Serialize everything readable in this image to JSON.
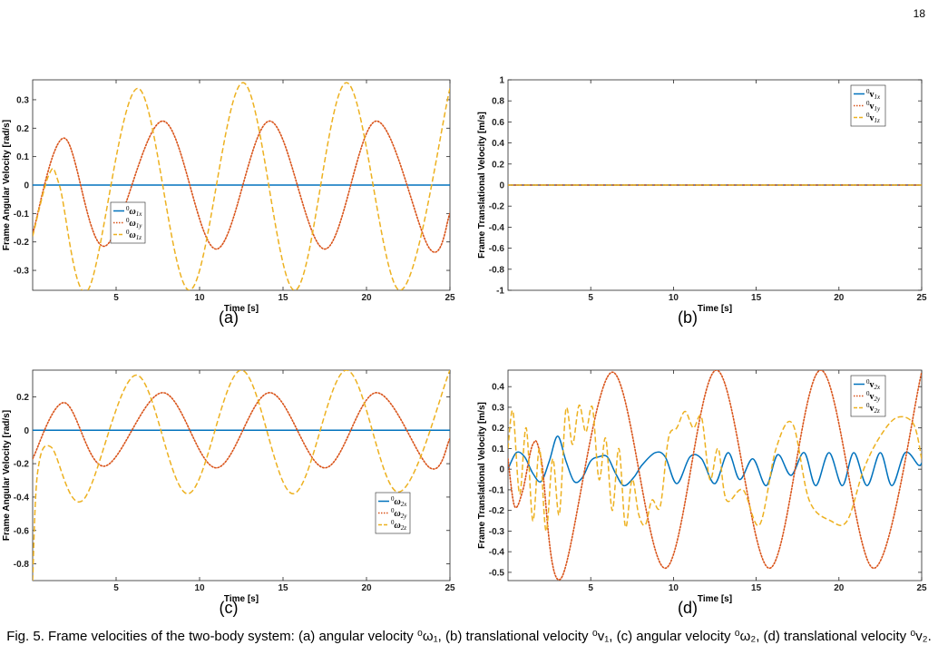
{
  "page_number": "18",
  "caption": "Fig. 5. Frame velocities of the two-body system: (a) angular velocity ⁰ω₁, (b) translational velocity ⁰v₁, (c) angular velocity ⁰ω₂, (d) translational velocity ⁰v₂.",
  "colors": {
    "x": "#0072BD",
    "y": "#D95319",
    "z": "#EDB120"
  },
  "chart_data": [
    {
      "id": "a",
      "sublabel": "(a)",
      "type": "line",
      "xlabel": "Time [s]",
      "ylabel": "Frame Angular Velocity [rad/s]",
      "xlim": [
        0,
        25
      ],
      "ylim": [
        -0.37,
        0.37
      ],
      "xticks": [
        5,
        10,
        15,
        20,
        25
      ],
      "yticks": [
        -0.3,
        -0.2,
        -0.1,
        0,
        0.1,
        0.2,
        0.3
      ],
      "legend_position": "bottom-left",
      "series": [
        {
          "name": "0ω1x",
          "sup": "0",
          "sym": "ω",
          "sub": "1x",
          "style": "solid",
          "color": "#0072BD",
          "x": [
            0,
            25
          ],
          "y": [
            0,
            0
          ]
        },
        {
          "name": "0ω1y",
          "sup": "0",
          "sym": "ω",
          "sub": "1y",
          "style": "dotted",
          "color": "#D95319",
          "x": [
            0,
            1.9,
            4.3,
            7.8,
            11.0,
            14.2,
            17.5,
            20.6,
            23.8,
            25
          ],
          "y": [
            -0.17,
            0.165,
            -0.215,
            0.225,
            -0.225,
            0.225,
            -0.225,
            0.225,
            -0.225,
            -0.1
          ]
        },
        {
          "name": "0ω1z",
          "sup": "0",
          "sym": "ω",
          "sub": "1z",
          "style": "dashed",
          "color": "#EDB120",
          "x": [
            0,
            1.0,
            1.6,
            3.3,
            6.3,
            9.4,
            12.6,
            15.7,
            18.8,
            22.0,
            25
          ],
          "y": [
            -0.18,
            0.04,
            0.0,
            -0.37,
            0.34,
            -0.37,
            0.36,
            -0.37,
            0.36,
            -0.37,
            0.34
          ]
        }
      ]
    },
    {
      "id": "b",
      "sublabel": "(b)",
      "type": "line",
      "xlabel": "Time [s]",
      "ylabel": "Frame Translational Velocity [m/s]",
      "xlim": [
        0,
        25
      ],
      "ylim": [
        -1,
        1
      ],
      "xticks": [
        5,
        10,
        15,
        20,
        25
      ],
      "yticks": [
        -1,
        -0.8,
        -0.6,
        -0.4,
        -0.2,
        0,
        0.2,
        0.4,
        0.6,
        0.8,
        1
      ],
      "legend_position": "top-right",
      "series": [
        {
          "name": "0v1x",
          "sup": "0",
          "sym": "v",
          "sub": "1x",
          "style": "solid",
          "color": "#0072BD",
          "x": [
            0,
            25
          ],
          "y": [
            0,
            0
          ]
        },
        {
          "name": "0v1y",
          "sup": "0",
          "sym": "v",
          "sub": "1y",
          "style": "dotted",
          "color": "#D95319",
          "x": [
            0,
            25
          ],
          "y": [
            0,
            0
          ]
        },
        {
          "name": "0v1z",
          "sup": "0",
          "sym": "v",
          "sub": "1z",
          "style": "dashed",
          "color": "#EDB120",
          "x": [
            0,
            25
          ],
          "y": [
            0,
            0
          ]
        }
      ]
    },
    {
      "id": "c",
      "sublabel": "(c)",
      "type": "line",
      "xlabel": "Time [s]",
      "ylabel": "Frame Angular Velocity [rad/s]",
      "xlim": [
        0,
        25
      ],
      "ylim": [
        -0.9,
        0.36
      ],
      "xticks": [
        5,
        10,
        15,
        20,
        25
      ],
      "yticks": [
        -0.8,
        -0.6,
        -0.4,
        -0.2,
        0,
        0.2
      ],
      "legend_position": "bottom-right",
      "series": [
        {
          "name": "0ω2x",
          "sup": "0",
          "sym": "ω",
          "sub": "2x",
          "style": "solid",
          "color": "#0072BD",
          "x": [
            0,
            25
          ],
          "y": [
            0,
            0
          ]
        },
        {
          "name": "0ω2y",
          "sup": "0",
          "sym": "ω",
          "sub": "2y",
          "style": "dotted",
          "color": "#D95319",
          "x": [
            0,
            1.9,
            4.3,
            7.8,
            11.0,
            14.2,
            17.5,
            20.6,
            23.8,
            25
          ],
          "y": [
            -0.17,
            0.165,
            -0.215,
            0.225,
            -0.225,
            0.225,
            -0.225,
            0.225,
            -0.225,
            -0.05
          ]
        },
        {
          "name": "0ω2z",
          "sup": "0",
          "sym": "ω",
          "sub": "2z",
          "style": "dashed",
          "color": "#EDB120",
          "x": [
            0,
            0.3,
            1.1,
            3.0,
            6.2,
            9.3,
            12.5,
            15.6,
            18.8,
            21.9,
            25
          ],
          "y": [
            -0.9,
            -0.25,
            -0.1,
            -0.42,
            0.33,
            -0.38,
            0.36,
            -0.38,
            0.36,
            -0.37,
            0.36
          ]
        }
      ]
    },
    {
      "id": "d",
      "sublabel": "(d)",
      "type": "line",
      "xlabel": "Time [s]",
      "ylabel": "Frame Translational Velocity [m/s]",
      "xlim": [
        0,
        25
      ],
      "ylim": [
        -0.54,
        0.48
      ],
      "xticks": [
        5,
        10,
        15,
        20,
        25
      ],
      "yticks": [
        -0.5,
        -0.4,
        -0.3,
        -0.2,
        -0.1,
        0,
        0.1,
        0.2,
        0.3,
        0.4
      ],
      "legend_position": "top-right",
      "series": [
        {
          "name": "0v2x",
          "sup": "0",
          "sym": "v",
          "sub": "2x",
          "style": "solid",
          "color": "#0072BD",
          "x": [
            0,
            0.5,
            1.0,
            1.5,
            2.0,
            2.5,
            3.0,
            3.5,
            4.0,
            4.5,
            5.0,
            5.5,
            6.0,
            6.5,
            7.0,
            7.6,
            8.1,
            8.9,
            9.5,
            10.2,
            11.0,
            11.7,
            12.5,
            13.3,
            14.0,
            14.8,
            15.6,
            16.3,
            17.1,
            17.9,
            18.6,
            19.4,
            20.2,
            20.9,
            21.7,
            22.5,
            23.2,
            24.0,
            24.8,
            25
          ],
          "y": [
            0,
            0.08,
            0.06,
            -0.02,
            -0.06,
            0.04,
            0.16,
            0.04,
            -0.06,
            -0.04,
            0.04,
            0.06,
            0.06,
            -0.02,
            -0.08,
            -0.04,
            0.02,
            0.08,
            0.06,
            -0.07,
            0.06,
            0.05,
            -0.07,
            0.08,
            -0.05,
            0.05,
            -0.08,
            0.07,
            -0.03,
            0.08,
            -0.08,
            0.08,
            -0.08,
            0.08,
            -0.08,
            0.08,
            -0.08,
            0.08,
            0.02,
            0.03
          ]
        },
        {
          "name": "0v2y",
          "sup": "0",
          "sym": "v",
          "sub": "2y",
          "style": "dotted",
          "color": "#D95319",
          "x": [
            0,
            0.4,
            0.9,
            1.5,
            2.0,
            3.2,
            6.3,
            9.5,
            12.6,
            15.8,
            18.9,
            22.1,
            25
          ],
          "y": [
            0.05,
            -0.18,
            -0.1,
            0.12,
            0.05,
            -0.53,
            0.47,
            -0.48,
            0.48,
            -0.48,
            0.48,
            -0.48,
            0.47
          ]
        },
        {
          "name": "0v2z",
          "sup": "0",
          "sym": "v",
          "sub": "2z",
          "style": "dashed",
          "color": "#EDB120",
          "x": [
            0,
            0.3,
            0.7,
            1.1,
            1.5,
            1.9,
            2.3,
            2.7,
            3.1,
            3.5,
            3.9,
            4.3,
            4.7,
            5.1,
            5.5,
            5.9,
            6.3,
            6.7,
            7.1,
            7.5,
            7.9,
            8.3,
            8.7,
            9.2,
            9.7,
            10.2,
            10.7,
            11.2,
            11.7,
            12.2,
            12.7,
            13.2,
            14.2,
            15.2,
            16.2,
            17.2,
            18.2,
            19.5,
            20.5,
            21.5,
            22.5,
            23.5,
            24.5,
            25
          ],
          "y": [
            0.1,
            0.28,
            -0.12,
            0.2,
            -0.25,
            0.1,
            -0.3,
            0.05,
            -0.22,
            0.29,
            0.12,
            0.31,
            0.18,
            0.3,
            -0.05,
            0.15,
            -0.2,
            0.1,
            -0.28,
            -0.05,
            -0.22,
            -0.27,
            -0.15,
            -0.18,
            0.15,
            0.2,
            0.28,
            0.2,
            0.25,
            -0.05,
            0.1,
            -0.15,
            -0.1,
            -0.27,
            0.1,
            0.22,
            -0.15,
            -0.25,
            -0.25,
            0.0,
            0.16,
            0.25,
            0.22,
            0.05
          ]
        }
      ]
    }
  ]
}
